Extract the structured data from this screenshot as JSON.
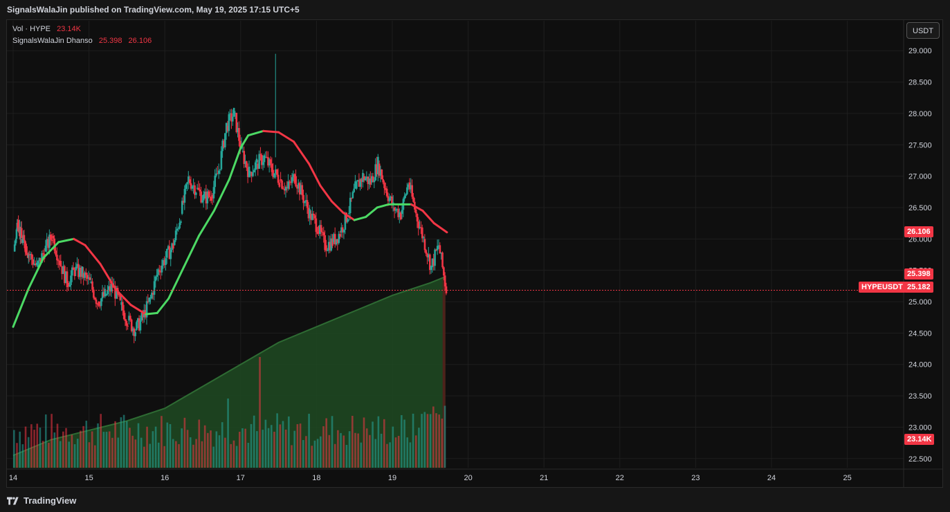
{
  "header": {
    "published_text": "SignalsWalaJin published on TradingView.com, May 19, 2025 17:15 UTC+5"
  },
  "legend": {
    "volume_label": "Vol · HYPE",
    "volume_value": "23.14K",
    "indicator_label": "SignalsWalaJin Dhanso",
    "indicator_value_1": "25.398",
    "indicator_value_2": "26.106"
  },
  "currency_button": "USDT",
  "price_tags": {
    "upper_line": "26.106",
    "lower_line": "25.398",
    "symbol": "HYPEUSDT",
    "last_price": "25.182",
    "volume": "23.14K"
  },
  "footer": {
    "brand": "TradingView"
  },
  "colors": {
    "up": "#26a69a",
    "down": "#f23645",
    "line_green": "#4cd964",
    "line_red": "#f23645",
    "area_fill": "#1f4a22",
    "background": "#0f0f0f",
    "grid": "#1e1e1e"
  },
  "chart_data": {
    "type": "candlestick",
    "symbol": "HYPEUSDT",
    "ylim": [
      22.2,
      29.3
    ],
    "y_ticks": [
      "29.000",
      "28.500",
      "28.000",
      "27.500",
      "27.000",
      "26.500",
      "26.000",
      "25.500",
      "25.000",
      "24.500",
      "24.000",
      "23.500",
      "23.000",
      "22.500"
    ],
    "x_ticks": [
      "14",
      "15",
      "16",
      "17",
      "18",
      "19",
      "20",
      "21",
      "22",
      "23",
      "24",
      "25"
    ],
    "last_price": 25.182,
    "price_series": [
      [
        14.0,
        25.8
      ],
      [
        14.05,
        26.3
      ],
      [
        14.1,
        26.0
      ],
      [
        14.15,
        25.9
      ],
      [
        14.2,
        25.75
      ],
      [
        14.3,
        25.55
      ],
      [
        14.4,
        25.8
      ],
      [
        14.5,
        26.05
      ],
      [
        14.6,
        25.65
      ],
      [
        14.7,
        25.3
      ],
      [
        14.8,
        25.5
      ],
      [
        14.9,
        25.45
      ],
      [
        15.0,
        25.3
      ],
      [
        15.1,
        25.0
      ],
      [
        15.2,
        25.1
      ],
      [
        15.3,
        25.25
      ],
      [
        15.4,
        24.95
      ],
      [
        15.5,
        24.7
      ],
      [
        15.6,
        24.55
      ],
      [
        15.7,
        24.75
      ],
      [
        15.8,
        25.05
      ],
      [
        15.9,
        25.5
      ],
      [
        16.0,
        25.7
      ],
      [
        16.1,
        25.9
      ],
      [
        16.2,
        26.4
      ],
      [
        16.3,
        26.95
      ],
      [
        16.4,
        26.8
      ],
      [
        16.5,
        26.65
      ],
      [
        16.6,
        26.7
      ],
      [
        16.7,
        27.1
      ],
      [
        16.8,
        27.8
      ],
      [
        16.9,
        28.0
      ],
      [
        17.0,
        27.4
      ],
      [
        17.1,
        27.05
      ],
      [
        17.2,
        27.2
      ],
      [
        17.3,
        27.3
      ],
      [
        17.4,
        27.1
      ],
      [
        17.5,
        26.95
      ],
      [
        17.6,
        26.8
      ],
      [
        17.7,
        27.0
      ],
      [
        17.8,
        26.7
      ],
      [
        17.9,
        26.4
      ],
      [
        18.0,
        26.2
      ],
      [
        18.1,
        25.9
      ],
      [
        18.2,
        25.95
      ],
      [
        18.3,
        26.1
      ],
      [
        18.4,
        26.4
      ],
      [
        18.5,
        26.8
      ],
      [
        18.6,
        27.0
      ],
      [
        18.7,
        26.9
      ],
      [
        18.8,
        27.2
      ],
      [
        18.9,
        26.8
      ],
      [
        19.0,
        26.5
      ],
      [
        19.1,
        26.4
      ],
      [
        19.2,
        26.9
      ],
      [
        19.3,
        26.4
      ],
      [
        19.4,
        26.0
      ],
      [
        19.5,
        25.55
      ],
      [
        19.6,
        25.9
      ],
      [
        19.7,
        25.18
      ]
    ],
    "series": [
      {
        "name": "SignalsWalaJin Dhanso",
        "color_up": "#4cd964",
        "color_down": "#f23645",
        "points": [
          [
            14.0,
            24.6
          ],
          [
            14.2,
            25.2
          ],
          [
            14.4,
            25.7
          ],
          [
            14.6,
            25.95
          ],
          [
            14.8,
            26.0
          ],
          [
            14.95,
            25.9
          ],
          [
            15.15,
            25.6
          ],
          [
            15.35,
            25.2
          ],
          [
            15.55,
            24.95
          ],
          [
            15.75,
            24.8
          ],
          [
            15.9,
            24.82
          ],
          [
            16.05,
            25.05
          ],
          [
            16.25,
            25.55
          ],
          [
            16.45,
            26.05
          ],
          [
            16.65,
            26.45
          ],
          [
            16.85,
            26.95
          ],
          [
            17.0,
            27.45
          ],
          [
            17.1,
            27.65
          ],
          [
            17.3,
            27.72
          ],
          [
            17.5,
            27.7
          ],
          [
            17.7,
            27.55
          ],
          [
            17.9,
            27.2
          ],
          [
            18.05,
            26.85
          ],
          [
            18.2,
            26.6
          ],
          [
            18.35,
            26.42
          ],
          [
            18.5,
            26.3
          ],
          [
            18.65,
            26.35
          ],
          [
            18.8,
            26.5
          ],
          [
            18.95,
            26.55
          ],
          [
            19.1,
            26.55
          ],
          [
            19.25,
            26.55
          ],
          [
            19.4,
            26.45
          ],
          [
            19.55,
            26.25
          ],
          [
            19.72,
            26.106
          ]
        ]
      },
      {
        "name": "",
        "points": [
          [
            14.0,
            22.55
          ],
          [
            14.5,
            22.8
          ],
          [
            15.0,
            22.95
          ],
          [
            15.5,
            23.1
          ],
          [
            16.0,
            23.3
          ],
          [
            16.5,
            23.65
          ],
          [
            17.0,
            24.0
          ],
          [
            17.5,
            24.35
          ],
          [
            18.0,
            24.6
          ],
          [
            18.5,
            24.85
          ],
          [
            19.0,
            25.1
          ],
          [
            19.5,
            25.3
          ],
          [
            19.7,
            25.398
          ]
        ]
      }
    ],
    "volume": {
      "label": "Vol · HYPE",
      "last": "23.14K",
      "bars_up_down": "mixed"
    }
  }
}
